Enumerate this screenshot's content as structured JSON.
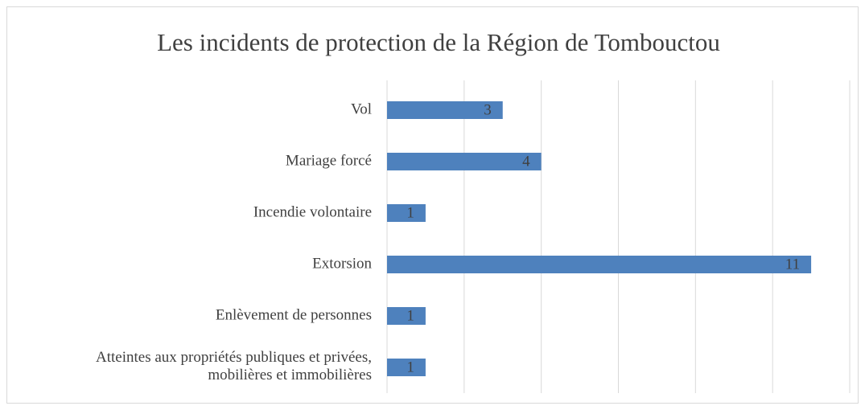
{
  "chart_data": {
    "type": "barh",
    "title": "Les incidents de protection de la Région de Tombouctou",
    "categories": [
      "Vol",
      "Mariage forcé",
      "Incendie volontaire",
      "Extorsion",
      "Enlèvement de personnes",
      "Atteintes aux propriétés publiques et privées,\nmobilières et immobilières"
    ],
    "values": [
      3,
      4,
      1,
      11,
      1,
      1
    ],
    "color": "#4e81bd",
    "xlim": [
      0,
      12
    ],
    "xticks": [
      0,
      2,
      4,
      6,
      8,
      10,
      12
    ],
    "grid": true
  }
}
